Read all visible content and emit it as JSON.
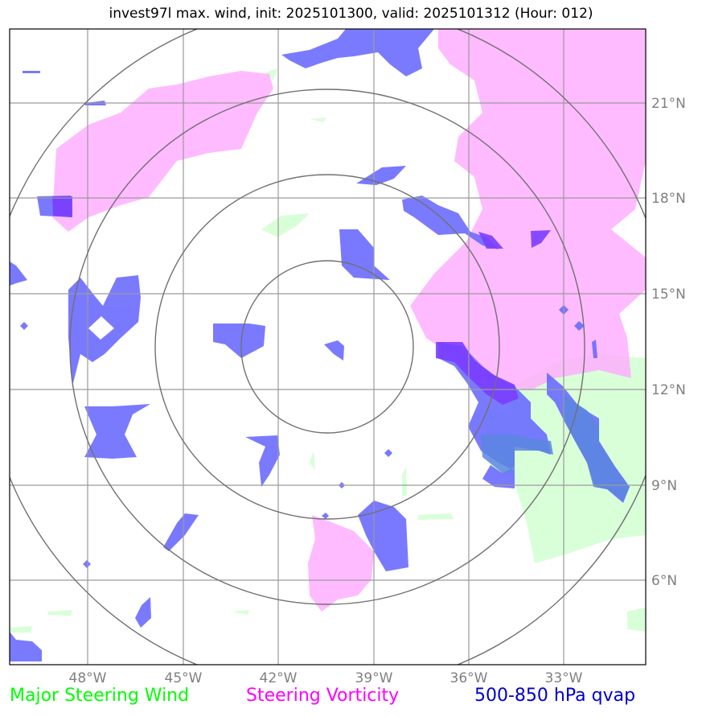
{
  "title": "invest97l max. wind, init: 2025101300, valid: 2025101312 (Hour: 012)",
  "lat_labels": [
    "21°N",
    "18°N",
    "15°N",
    "12°N",
    "9°N",
    "6°N"
  ],
  "lon_labels": [
    "48°W",
    "45°W",
    "42°W",
    "39°W",
    "36°W",
    "33°W"
  ],
  "legend": {
    "wind": "Major Steering Wind",
    "vorticity": "Steering Vorticity",
    "qvap": "500-850 hPa qvap"
  },
  "colors": {
    "wind": "#00ff00",
    "vorticity": "#ff00ff",
    "qvap": "#0000cc",
    "wind_fill": "#ccffcc",
    "vorticity_fill": "#ffaaff",
    "qvap_fill": "#6b6bff",
    "overlap_fill": "#7a3dff",
    "grid": "#9a9a9a",
    "rings": "#707070"
  }
}
